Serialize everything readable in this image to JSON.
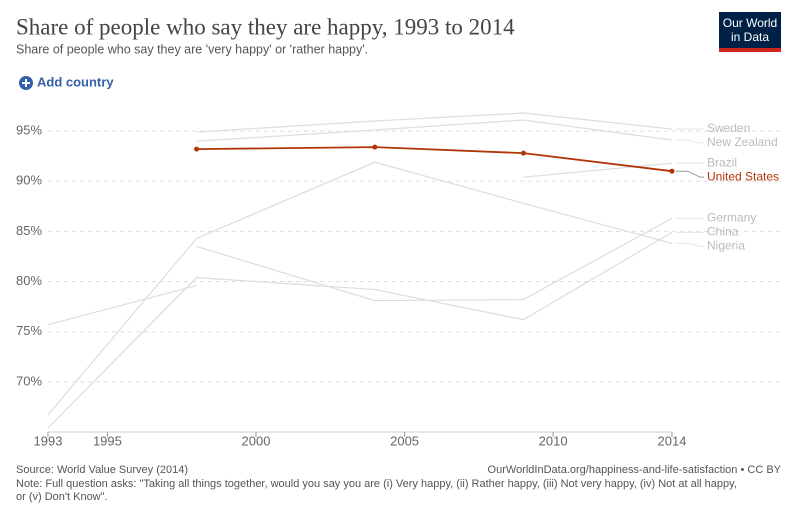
{
  "chart_data": {
    "type": "line",
    "title": "Share of people who say they are happy, 1993 to 2014",
    "subtitle": "Share of people who say they are 'very happy' or 'rather happy'.",
    "x": [
      1993,
      1998,
      2004,
      2009,
      2014
    ],
    "xlim": [
      1993,
      2014
    ],
    "xticks": [
      1993,
      1995,
      2000,
      2005,
      2010,
      2014
    ],
    "ylim": [
      65,
      97
    ],
    "yticks": [
      {
        "value": 70,
        "label": "70%"
      },
      {
        "value": 75,
        "label": "75%"
      },
      {
        "value": 80,
        "label": "80%"
      },
      {
        "value": 85,
        "label": "85%"
      },
      {
        "value": 90,
        "label": "90%"
      },
      {
        "value": 95,
        "label": "95%"
      }
    ],
    "grid": true,
    "series": [
      {
        "name": "Sweden",
        "color": "#dddddd",
        "values": [
          null,
          94.9,
          96.0,
          96.8,
          95.2
        ]
      },
      {
        "name": "New Zealand",
        "color": "#dddddd",
        "values": [
          null,
          94.0,
          95.1,
          96.1,
          94.1
        ]
      },
      {
        "name": "Brazil",
        "color": "#dddddd",
        "values": [
          75.7,
          79.6,
          null,
          90.4,
          91.8
        ]
      },
      {
        "name": "Germany",
        "color": "#dddddd",
        "values": [
          null,
          83.5,
          78.1,
          78.2,
          86.3
        ]
      },
      {
        "name": "China",
        "color": "#dddddd",
        "values": [
          65.4,
          80.4,
          79.2,
          76.2,
          84.9
        ]
      },
      {
        "name": "Nigeria",
        "color": "#dddddd",
        "values": [
          66.7,
          84.3,
          91.9,
          87.8,
          83.8
        ]
      },
      {
        "name": "United States",
        "color": "#b13507",
        "values": [
          null,
          93.2,
          93.4,
          92.8,
          91.0
        ]
      }
    ],
    "source": "Source: World Value Survey (2014)",
    "url": "OurWorldInData.org/happiness-and-life-satisfaction • CC BY",
    "note": [
      "Note: Full question asks: \"Taking all things together, would you say you are (i) Very happy, (ii) Rather happy, (iii) Not very happy, (iv) Not at all happy,",
      "or (v) Don't Know\"."
    ]
  },
  "controls": {
    "add_country": "Add country"
  },
  "logo": [
    "Our World",
    "in Data"
  ]
}
